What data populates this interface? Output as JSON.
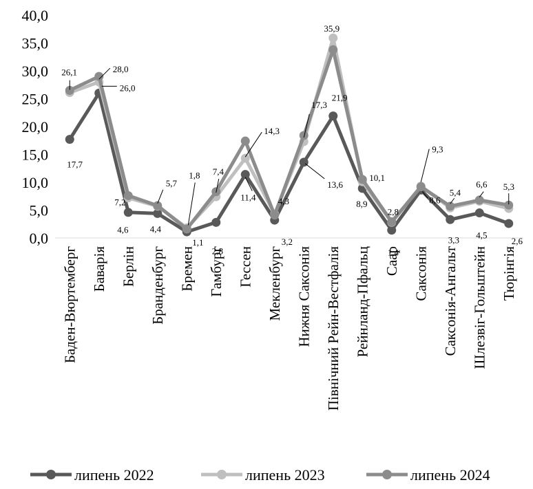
{
  "chart_data": {
    "type": "line",
    "title": "",
    "xlabel": "",
    "ylabel": "",
    "ylim": [
      0,
      40
    ],
    "y_ticks": [
      "0,0",
      "5,0",
      "10,0",
      "15,0",
      "20,0",
      "25,0",
      "30,0",
      "35,0",
      "40,0"
    ],
    "grid": false,
    "legend_position": "bottom",
    "categories": [
      "Баден-Вюртемберг",
      "Баварія",
      "Берлін",
      "Бранденбург",
      "Бремен",
      "Гамбург",
      "Гессен",
      "Мекленбург",
      "Нижня Саксонія",
      "Північний Рейн-Вестфалія",
      "Рейнланд-Пфальц",
      "Саар",
      "Саксонія",
      "Саксонія-Ангальт",
      "Шлезвіг-Гольштейн",
      "Тюрінгія"
    ],
    "series": [
      {
        "name": "липень 2022",
        "color": "#595959",
        "values": [
          17.7,
          26.0,
          4.6,
          4.4,
          1.1,
          2.8,
          11.4,
          3.2,
          13.6,
          21.9,
          8.9,
          1.4,
          8.6,
          3.3,
          4.5,
          2.6
        ]
      },
      {
        "name": "липень 2023",
        "color": "#bfbfbf",
        "values": [
          26.1,
          28.0,
          7.2,
          5.7,
          1.8,
          7.4,
          14.3,
          4.3,
          17.3,
          35.9,
          10.1,
          2.8,
          9.3,
          5.4,
          6.6,
          5.3
        ]
      },
      {
        "name": "липень 2024",
        "color": "#8c8c8c",
        "values": [
          26.5,
          29.0,
          7.6,
          5.8,
          1.6,
          8.3,
          17.4,
          4.1,
          18.4,
          33.8,
          10.5,
          2.9,
          9.2,
          5.7,
          6.8,
          5.9
        ]
      }
    ],
    "data_labels": [
      {
        "text": "17,7"
      },
      {
        "text": "26,1"
      },
      {
        "text": "28,0"
      },
      {
        "text": "26,0"
      },
      {
        "text": "7,2"
      },
      {
        "text": "4,6"
      },
      {
        "text": "5,7"
      },
      {
        "text": "4,4"
      },
      {
        "text": "1,8"
      },
      {
        "text": "1,1"
      },
      {
        "text": "7,4"
      },
      {
        "text": "2,8"
      },
      {
        "text": "14,3"
      },
      {
        "text": "11,4"
      },
      {
        "text": "4,3"
      },
      {
        "text": "3,2"
      },
      {
        "text": "17,3"
      },
      {
        "text": "13,6"
      },
      {
        "text": "35,9"
      },
      {
        "text": "21,9"
      },
      {
        "text": "10,1"
      },
      {
        "text": "8,9"
      },
      {
        "text": "2,8"
      },
      {
        "text": "1,4"
      },
      {
        "text": "9,3"
      },
      {
        "text": "8,6"
      },
      {
        "text": "5,4"
      },
      {
        "text": "3,3"
      },
      {
        "text": "6,6"
      },
      {
        "text": "4,5"
      },
      {
        "text": "5,3"
      },
      {
        "text": "2,6"
      }
    ]
  }
}
